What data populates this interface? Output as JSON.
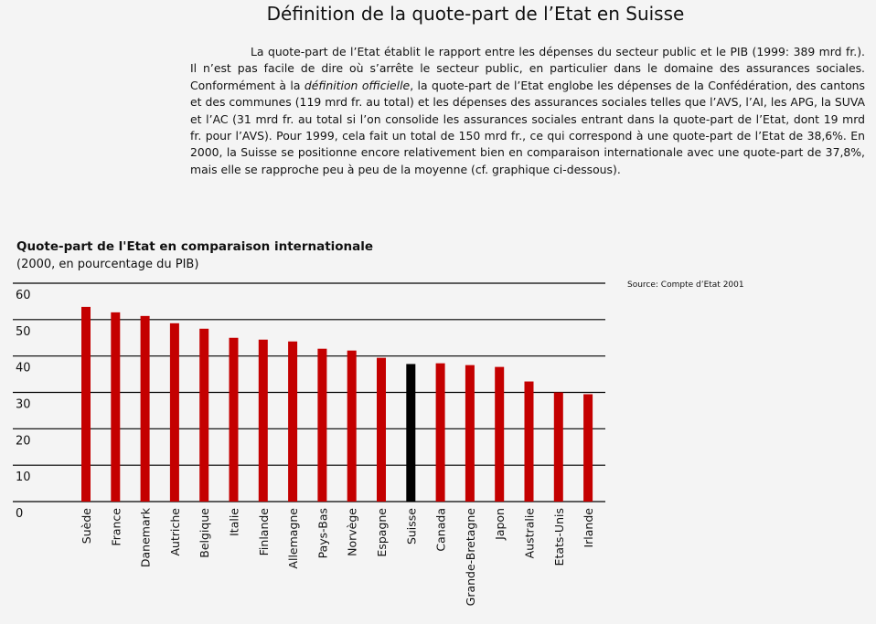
{
  "page": {
    "title": "Définition de la quote-part de l’Etat en Suisse"
  },
  "intro": {
    "part1": "La quote-part de l’Etat établit le rapport entre les dépenses du secteur public et le PIB (1999: 389 mrd fr.). Il n’est pas facile de dire où s’arrête le secteur public, en particulier dans le domaine des assurances sociales. Conformément à la ",
    "emphasis": "définition officielle",
    "part2": ", la quote-part de l’Etat englobe les dépenses de la Confédération, des cantons et des communes (119 mrd fr. au total) et les dépenses des assurances sociales telles que l’AVS, l’AI, les APG, la SUVA et l’AC (31 mrd fr. au total si l’on consolide les assurances sociales entrant dans la quote-part de l’Etat, dont 19 mrd fr. pour l’AVS). Pour 1999, cela fait un total de 150 mrd fr., ce qui correspond à une quote-part de l’Etat de 38,6%. En 2000, la Suisse se positionne encore relativement bien en comparaison internationale avec une quote-part de 37,8%, mais elle se rapproche peu à peu de la moyenne (cf. graphique ci-dessous)."
  },
  "source_note": "Source: Compte d’Etat 2001",
  "chart_data": {
    "type": "bar",
    "title": "Quote-part de l'Etat en comparaison internationale",
    "subtitle": "(2000, en pourcentage du PIB)",
    "xlabel": "",
    "ylabel": "",
    "ylim": [
      0,
      60
    ],
    "yticks": [
      0,
      10,
      20,
      30,
      40,
      50,
      60
    ],
    "grid": true,
    "categories": [
      "Suède",
      "France",
      "Danemark",
      "Autriche",
      "Belgique",
      "Italie",
      "Finlande",
      "Allemagne",
      "Pays-Bas",
      "Norvège",
      "Espagne",
      "Suisse",
      "Canada",
      "Grande-Bretagne",
      "Japon",
      "Australie",
      "Etats-Unis",
      "Irlande"
    ],
    "values": [
      53.5,
      52,
      51,
      49,
      47.5,
      45,
      44.5,
      44,
      42,
      41.5,
      39.5,
      37.8,
      38,
      37.5,
      37,
      33,
      30,
      29.5
    ],
    "highlight": "Suisse",
    "colors": {
      "bar": "#c40000",
      "highlight": "#000000",
      "grid": "#000000"
    }
  }
}
